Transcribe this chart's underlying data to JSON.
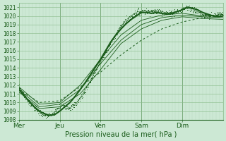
{
  "xlabel": "Pression niveau de la mer( hPa )",
  "bg_color": "#cce8d4",
  "grid_color_minor": "#b8d8be",
  "grid_color_major": "#88bb88",
  "line_color": "#1a5c1a",
  "ylim": [
    1008,
    1021.5
  ],
  "ytick_vals": [
    1008,
    1009,
    1010,
    1011,
    1012,
    1013,
    1014,
    1015,
    1016,
    1017,
    1018,
    1019,
    1020,
    1021
  ],
  "day_labels": [
    "Mer",
    "Jeu",
    "Ven",
    "Sam",
    "Dim"
  ],
  "day_positions": [
    0,
    24,
    48,
    72,
    96
  ],
  "total_hours": 120,
  "series": {
    "noisy_main": {
      "x": [
        0,
        2,
        4,
        6,
        8,
        10,
        12,
        14,
        16,
        18,
        20,
        22,
        24,
        26,
        28,
        30,
        32,
        34,
        36,
        38,
        40,
        42,
        44,
        46,
        48,
        50,
        52,
        54,
        56,
        58,
        60,
        62,
        64,
        66,
        68,
        70,
        72,
        74,
        76,
        78,
        80,
        82,
        84,
        86,
        88,
        90,
        92,
        94,
        96,
        98,
        100,
        102,
        104,
        106,
        108,
        110,
        112,
        114,
        116,
        118,
        120
      ],
      "y": [
        1011.8,
        1011.2,
        1010.6,
        1010.1,
        1009.6,
        1009.2,
        1008.9,
        1008.6,
        1008.5,
        1008.5,
        1008.7,
        1009.1,
        1009.5,
        1009.7,
        1009.5,
        1009.4,
        1009.6,
        1010.0,
        1010.5,
        1011.1,
        1011.8,
        1012.5,
        1013.3,
        1014.0,
        1014.8,
        1015.5,
        1016.2,
        1016.9,
        1017.6,
        1018.2,
        1018.8,
        1019.3,
        1019.7,
        1020.0,
        1020.3,
        1020.5,
        1020.5,
        1020.6,
        1020.5,
        1020.6,
        1020.5,
        1020.6,
        1020.5,
        1020.4,
        1020.3,
        1020.4,
        1020.5,
        1020.6,
        1020.7,
        1021.0,
        1020.9,
        1020.8,
        1020.6,
        1020.4,
        1020.2,
        1020.1,
        1020.0,
        1020.0,
        1020.1,
        1020.2,
        1020.1
      ]
    },
    "solid_main": {
      "x": [
        0,
        3,
        6,
        9,
        12,
        15,
        18,
        21,
        24,
        27,
        30,
        33,
        36,
        39,
        42,
        45,
        48,
        51,
        54,
        57,
        60,
        63,
        66,
        69,
        72,
        75,
        78,
        81,
        84,
        87,
        90,
        93,
        96,
        99,
        102,
        105,
        108,
        111,
        114,
        117,
        120
      ],
      "y": [
        1011.5,
        1010.8,
        1010.1,
        1009.5,
        1009.0,
        1008.7,
        1008.5,
        1008.6,
        1009.0,
        1009.5,
        1010.0,
        1010.7,
        1011.5,
        1012.3,
        1013.2,
        1014.1,
        1015.0,
        1016.0,
        1017.0,
        1017.8,
        1018.5,
        1019.1,
        1019.6,
        1020.0,
        1020.4,
        1020.4,
        1020.3,
        1020.4,
        1020.3,
        1020.2,
        1020.3,
        1020.5,
        1020.7,
        1021.0,
        1020.9,
        1020.7,
        1020.4,
        1020.2,
        1020.0,
        1019.9,
        1020.0
      ]
    },
    "dotted_trend": {
      "x": [
        0,
        12,
        24,
        36,
        48,
        60,
        72,
        84,
        96,
        108,
        120
      ],
      "y": [
        1011.5,
        1010.0,
        1010.2,
        1011.8,
        1013.5,
        1015.5,
        1017.2,
        1018.5,
        1019.3,
        1019.8,
        1020.2
      ]
    },
    "thin1": {
      "x": [
        0,
        12,
        24,
        36,
        48,
        60,
        72,
        84,
        96,
        108,
        120
      ],
      "y": [
        1011.8,
        1009.8,
        1010.0,
        1012.0,
        1015.0,
        1017.8,
        1019.5,
        1020.1,
        1020.3,
        1020.0,
        1020.0
      ]
    },
    "thin2": {
      "x": [
        0,
        12,
        24,
        36,
        48,
        60,
        72,
        84,
        96,
        108,
        120
      ],
      "y": [
        1011.5,
        1009.5,
        1009.8,
        1011.5,
        1014.5,
        1017.2,
        1019.0,
        1019.8,
        1020.1,
        1019.9,
        1019.8
      ]
    },
    "thin3": {
      "x": [
        0,
        12,
        24,
        36,
        48,
        60,
        72,
        84,
        96,
        108,
        120
      ],
      "y": [
        1011.2,
        1009.3,
        1009.5,
        1011.0,
        1013.8,
        1016.8,
        1018.5,
        1019.5,
        1019.9,
        1019.7,
        1019.6
      ]
    }
  }
}
